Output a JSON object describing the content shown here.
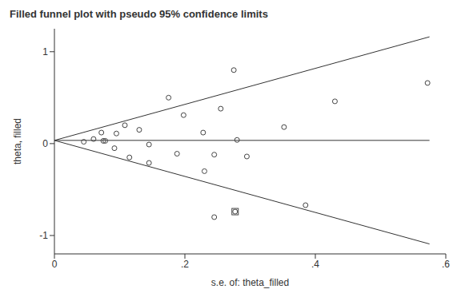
{
  "chart_data": {
    "type": "scatter",
    "title": "Filled funnel plot with pseudo 95% confidence limits",
    "x_label": "s.e. of: theta_filled",
    "y_label": "theta, filled",
    "xlim": [
      0,
      0.6
    ],
    "ylim": [
      -1.2,
      1.25
    ],
    "xticks": [
      0,
      {
        "value": 0.2,
        "label": ".2"
      },
      {
        "value": 0.4,
        "label": ".4"
      },
      {
        "value": 0.6,
        "label": ".6"
      }
    ],
    "yticks": [
      -1,
      0,
      1
    ],
    "grid": false,
    "series": [
      {
        "marker": "circle",
        "color": "#444444",
        "x": [
          0.045,
          0.06,
          0.072,
          0.075,
          0.078,
          0.092,
          0.095,
          0.108,
          0.115,
          0.13,
          0.145,
          0.145,
          0.175,
          0.188,
          0.198,
          0.228,
          0.23,
          0.245,
          0.245,
          0.255,
          0.275,
          0.28,
          0.295,
          0.352,
          0.385,
          0.43,
          0.572,
          0.277
        ],
        "values": [
          0.02,
          0.05,
          0.12,
          0.03,
          0.03,
          -0.05,
          0.11,
          0.2,
          -0.15,
          0.15,
          -0.01,
          -0.21,
          0.5,
          -0.11,
          0.31,
          0.12,
          -0.3,
          -0.12,
          -0.8,
          0.38,
          0.8,
          0.04,
          -0.14,
          0.18,
          -0.67,
          0.46,
          0.66,
          -0.74
        ]
      },
      {
        "marker": "square",
        "color": "#444444",
        "x": [
          0.277
        ],
        "values": [
          -0.74
        ]
      }
    ],
    "funnel": {
      "x": [
        0,
        0.575
      ],
      "center": [
        0.035,
        0.035
      ],
      "upper": [
        0.035,
        1.162
      ],
      "lower": [
        0.035,
        -1.092
      ],
      "color": "#333333"
    }
  }
}
